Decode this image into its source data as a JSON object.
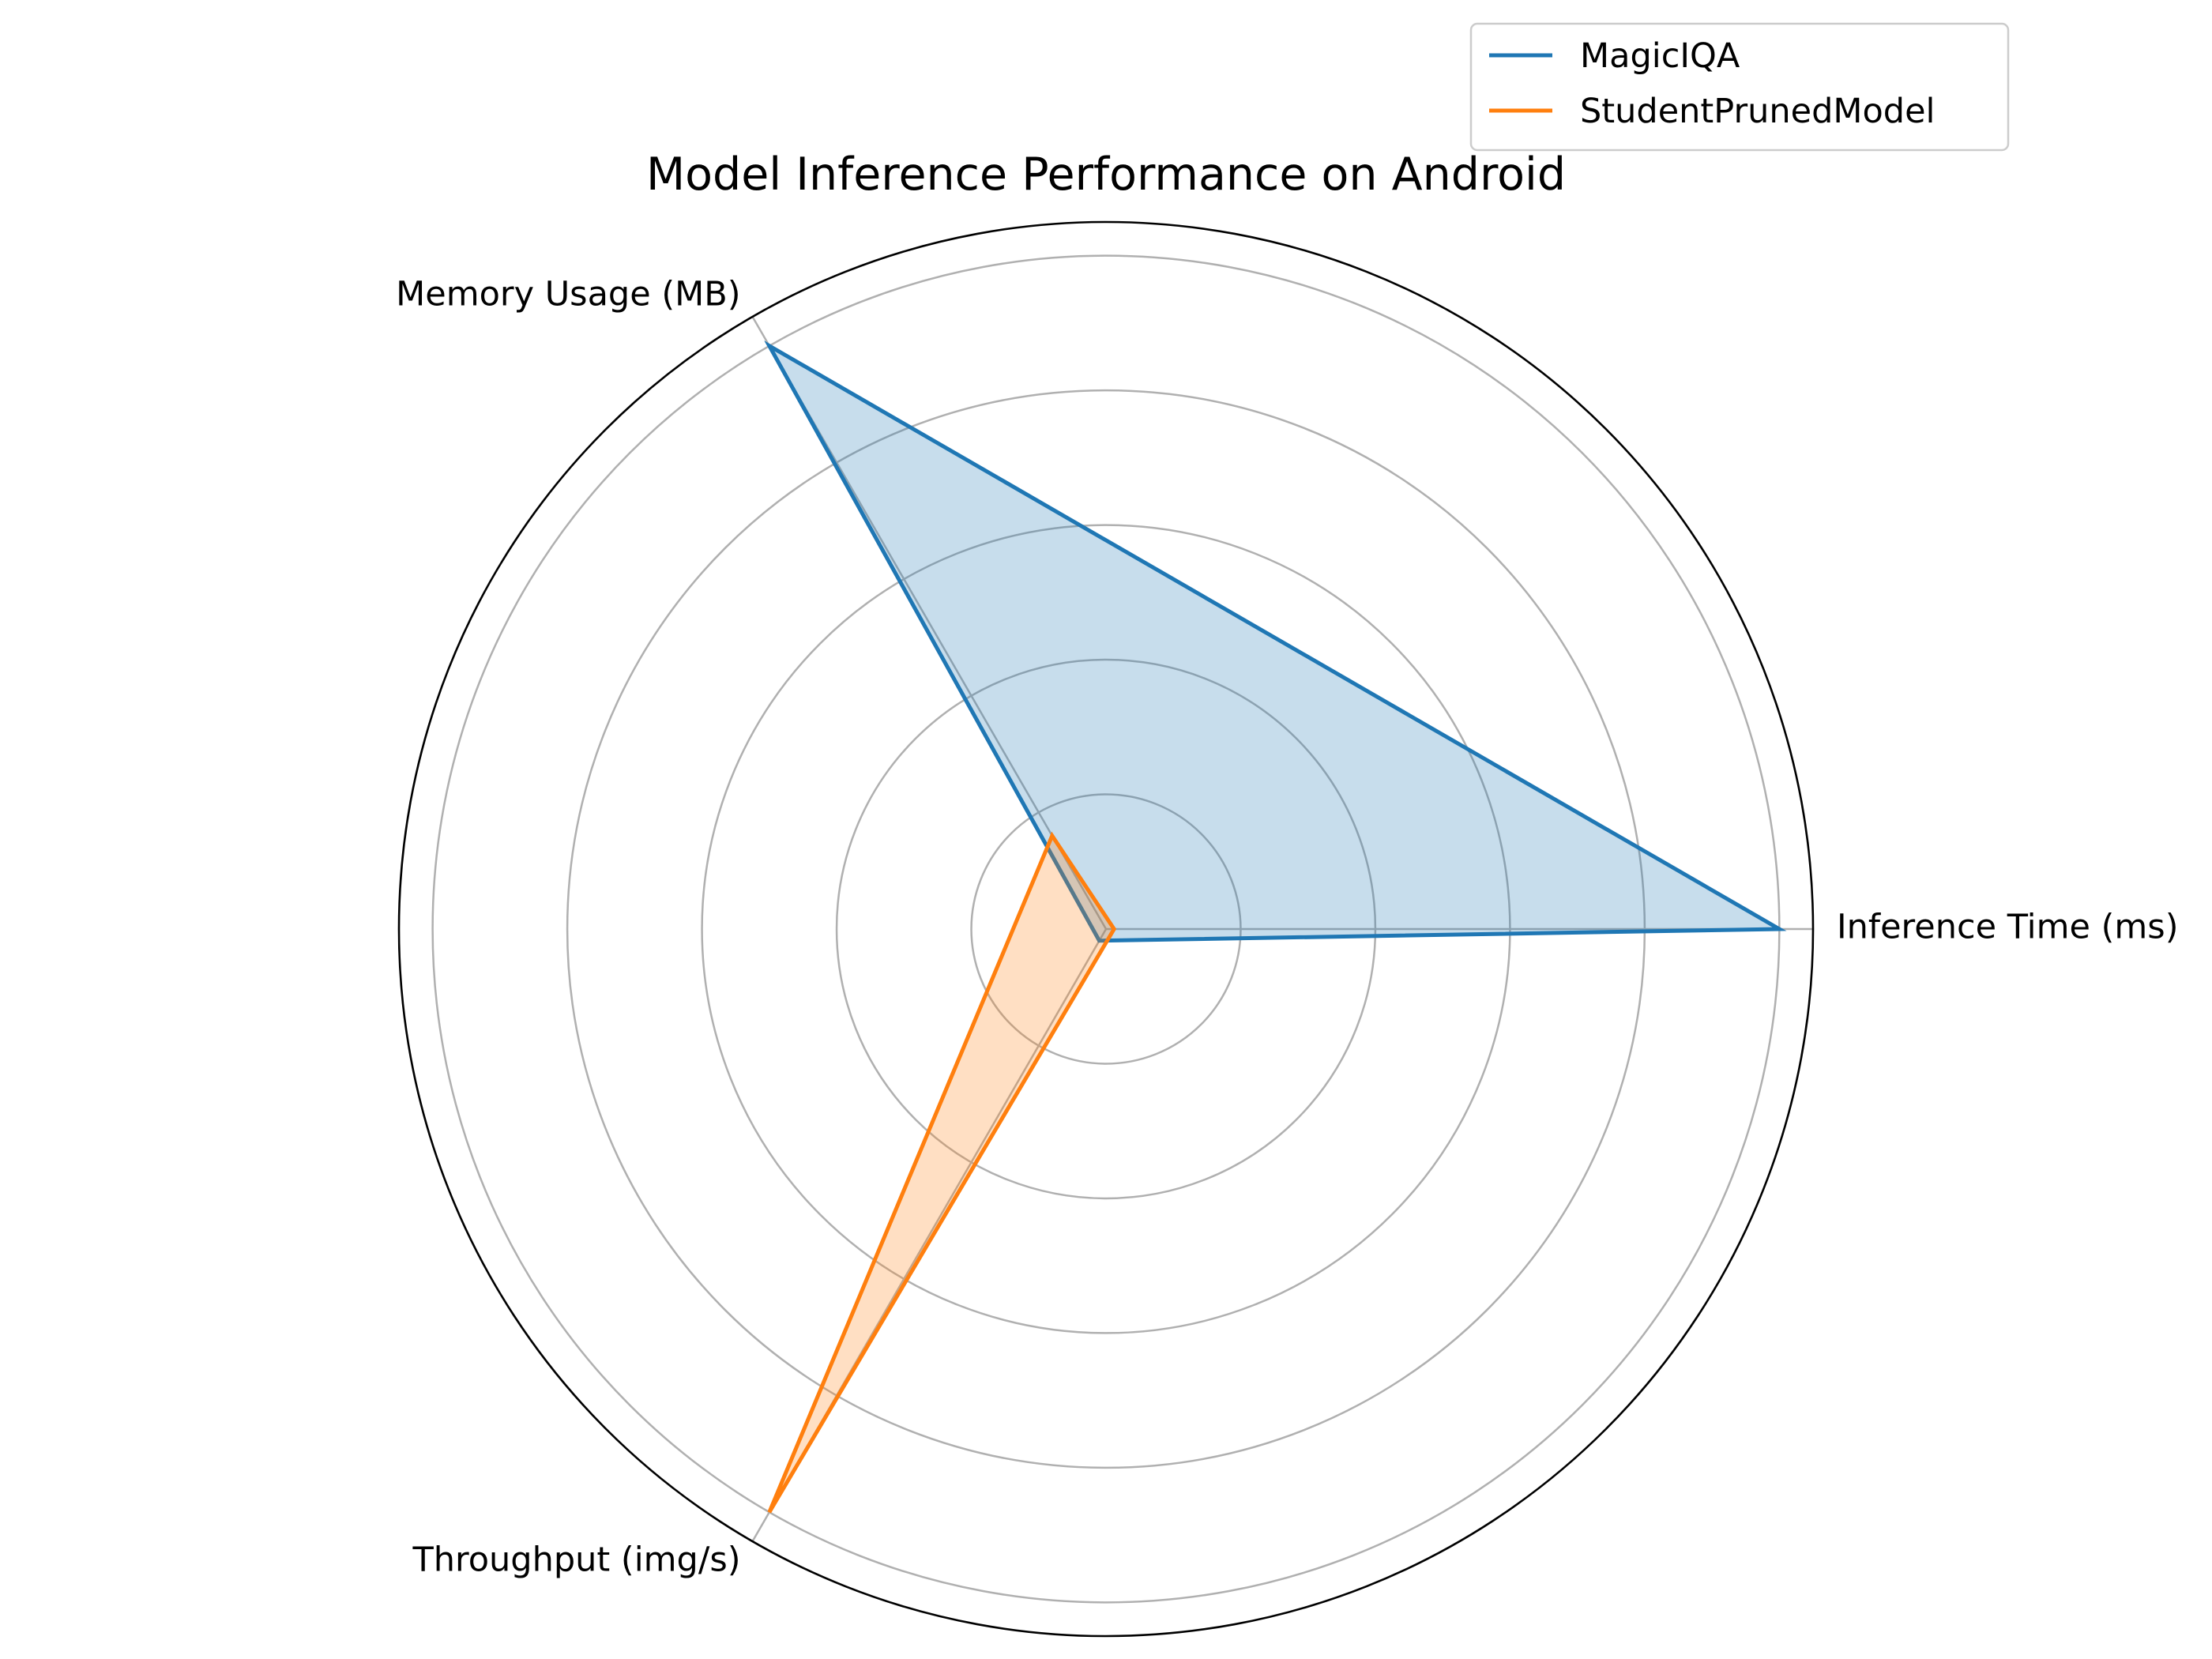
{
  "chart_data": {
    "type": "radar",
    "title": "Model Inference Performance on Android",
    "axes": [
      "Inference Time (ms)",
      "Memory Usage (MB)",
      "Throughput (img/s)"
    ],
    "rmax": 1.05,
    "grid": true,
    "ring_levels": [
      0.2,
      0.4,
      0.6,
      0.8,
      1.0
    ],
    "legend_position": "top-right",
    "series": [
      {
        "name": "MagicIQA",
        "values": [
          1.0,
          1.0,
          0.02
        ],
        "color": "#1f77b4"
      },
      {
        "name": "StudentPrunedModel",
        "values": [
          0.012,
          0.16,
          1.0
        ],
        "color": "#ff7f0e"
      }
    ]
  }
}
